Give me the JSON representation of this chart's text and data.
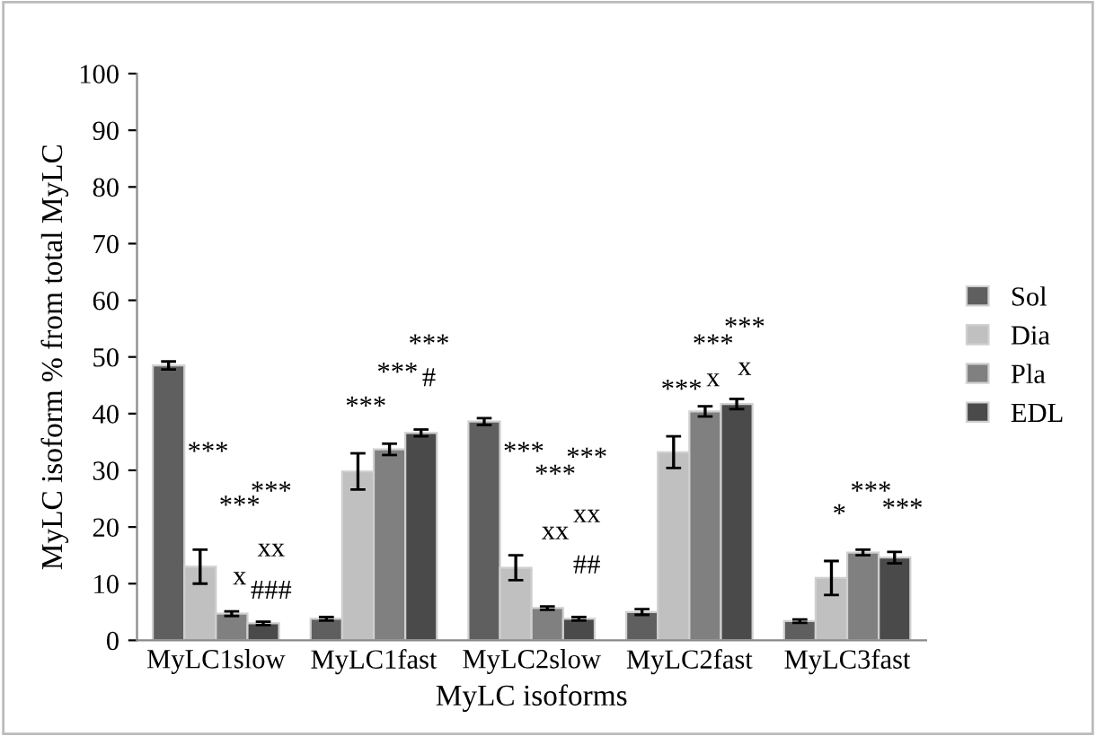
{
  "chart_data": {
    "type": "bar",
    "xlabel": "MyLC isoforms",
    "ylabel": "MyLC isoform % from total MyLC",
    "categories": [
      "MyLC1slow",
      "MyLC1fast",
      "MyLC2slow",
      "MyLC2fast",
      "MyLC3fast"
    ],
    "series": [
      {
        "name": "Sol",
        "color": "#5f5f5f",
        "values": [
          48.5,
          3.8,
          38.6,
          5.0,
          3.4
        ],
        "errors": [
          0.7,
          0.3,
          0.6,
          0.5,
          0.3
        ]
      },
      {
        "name": "Dia",
        "color": "#c0c0c0",
        "values": [
          13.0,
          29.8,
          12.8,
          33.2,
          11.0
        ],
        "errors": [
          3.0,
          3.2,
          2.2,
          2.8,
          3.0
        ]
      },
      {
        "name": "Pla",
        "color": "#808080",
        "values": [
          4.7,
          33.7,
          5.7,
          40.4,
          15.5
        ],
        "errors": [
          0.4,
          1.0,
          0.3,
          0.9,
          0.5
        ]
      },
      {
        "name": "EDL",
        "color": "#4a4a4a",
        "values": [
          3.0,
          36.6,
          3.8,
          41.7,
          14.6
        ],
        "errors": [
          0.3,
          0.6,
          0.3,
          0.9,
          1.0
        ]
      }
    ],
    "ylim": [
      0,
      100
    ],
    "yticks": [
      0,
      10,
      20,
      30,
      40,
      50,
      60,
      70,
      80,
      90,
      100
    ],
    "grid": false,
    "legend": "right",
    "annotations": [
      "***",
      "x",
      "***",
      "xx",
      "***",
      "###",
      "***",
      "***",
      "***",
      "#",
      "***",
      "xx",
      "***",
      "xx",
      "***",
      "##",
      "***",
      "x",
      "***",
      "x",
      "***",
      "*",
      "***",
      "***"
    ]
  }
}
